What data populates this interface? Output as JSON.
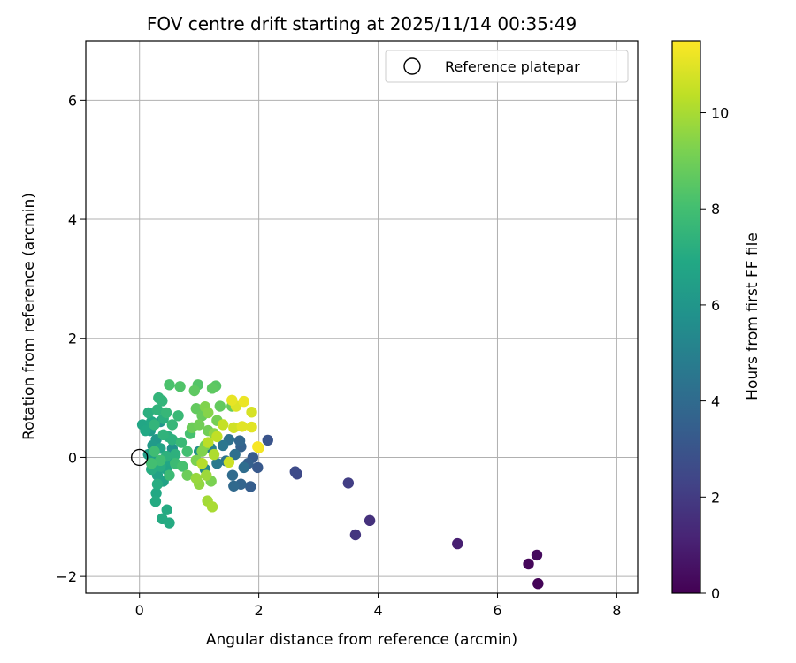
{
  "chart_data": {
    "type": "scatter",
    "title": "FOV centre drift starting at 2025/11/14 00:35:49",
    "xlabel": "Angular distance from reference (arcmin)",
    "ylabel": "Rotation from reference (arcmin)",
    "xlim": [
      -0.9,
      8.35
    ],
    "ylim": [
      -2.28,
      7.0
    ],
    "xticks": [
      0,
      2,
      4,
      6,
      8
    ],
    "yticks": [
      -2,
      0,
      2,
      4,
      6
    ],
    "grid": true,
    "legend": {
      "position": "top-right",
      "entries": [
        {
          "label": "Reference platepar",
          "marker": "open-circle"
        }
      ]
    },
    "reference_point": {
      "x": 0,
      "y": 0
    },
    "colorbar": {
      "label": "Hours from first FF file",
      "range": [
        0,
        11.5
      ],
      "ticks": [
        0,
        2,
        4,
        6,
        8,
        10
      ],
      "colormap": "viridis"
    },
    "points": [
      {
        "x": 6.68,
        "y": -2.12,
        "c": 0.1
      },
      {
        "x": 6.52,
        "y": -1.79,
        "c": 0.2
      },
      {
        "x": 6.66,
        "y": -1.64,
        "c": 0.3
      },
      {
        "x": 5.33,
        "y": -1.45,
        "c": 1.0
      },
      {
        "x": 3.86,
        "y": -1.06,
        "c": 1.6
      },
      {
        "x": 3.62,
        "y": -1.3,
        "c": 1.8
      },
      {
        "x": 3.5,
        "y": -0.43,
        "c": 2.1
      },
      {
        "x": 2.64,
        "y": -0.28,
        "c": 2.5
      },
      {
        "x": 2.61,
        "y": -0.24,
        "c": 2.6
      },
      {
        "x": 2.15,
        "y": 0.29,
        "c": 3.0
      },
      {
        "x": 1.98,
        "y": -0.17,
        "c": 3.2
      },
      {
        "x": 1.9,
        "y": 0.0,
        "c": 3.3
      },
      {
        "x": 1.86,
        "y": -0.49,
        "c": 3.4
      },
      {
        "x": 1.82,
        "y": -0.1,
        "c": 3.5
      },
      {
        "x": 1.7,
        "y": 0.18,
        "c": 3.6
      },
      {
        "x": 1.7,
        "y": -0.45,
        "c": 3.7
      },
      {
        "x": 1.68,
        "y": 0.28,
        "c": 3.8
      },
      {
        "x": 1.58,
        "y": -0.48,
        "c": 3.9
      },
      {
        "x": 1.56,
        "y": -0.3,
        "c": 4.0
      },
      {
        "x": 1.75,
        "y": -0.17,
        "c": 4.1
      },
      {
        "x": 1.6,
        "y": 0.05,
        "c": 4.2
      },
      {
        "x": 1.5,
        "y": 0.3,
        "c": 4.3
      },
      {
        "x": 1.45,
        "y": -0.06,
        "c": 4.4
      },
      {
        "x": 1.4,
        "y": 0.2,
        "c": 4.5
      },
      {
        "x": 1.3,
        "y": -0.1,
        "c": 4.7
      },
      {
        "x": 1.2,
        "y": 0.15,
        "c": 5.0
      },
      {
        "x": 1.1,
        "y": -0.2,
        "c": 5.3
      },
      {
        "x": 1.0,
        "y": 0.1,
        "c": 5.6
      },
      {
        "x": 0.55,
        "y": 0.15,
        "c": 5.8
      },
      {
        "x": 0.35,
        "y": 0.6,
        "c": 6.0
      },
      {
        "x": 0.28,
        "y": 0.3,
        "c": 6.1
      },
      {
        "x": 0.22,
        "y": 0.2,
        "c": 6.2
      },
      {
        "x": 0.18,
        "y": 0.45,
        "c": 6.3
      },
      {
        "x": 0.15,
        "y": 0.05,
        "c": 6.4
      },
      {
        "x": 0.25,
        "y": -0.05,
        "c": 6.5
      },
      {
        "x": 0.3,
        "y": -0.3,
        "c": 6.6
      },
      {
        "x": 0.4,
        "y": -0.4,
        "c": 6.6
      },
      {
        "x": 0.45,
        "y": -0.2,
        "c": 6.7
      },
      {
        "x": 0.35,
        "y": 0.15,
        "c": 6.7
      },
      {
        "x": 0.5,
        "y": -0.05,
        "c": 6.8
      },
      {
        "x": 0.05,
        "y": 0.55,
        "c": 6.8
      },
      {
        "x": 0.1,
        "y": 0.45,
        "c": 6.9
      },
      {
        "x": 0.2,
        "y": 0.6,
        "c": 6.9
      },
      {
        "x": 0.28,
        "y": -0.6,
        "c": 6.9
      },
      {
        "x": 0.27,
        "y": -0.74,
        "c": 7.0
      },
      {
        "x": 0.38,
        "y": -1.03,
        "c": 7.0
      },
      {
        "x": 0.46,
        "y": -0.88,
        "c": 7.0
      },
      {
        "x": 0.5,
        "y": -1.1,
        "c": 7.0
      },
      {
        "x": 0.35,
        "y": -0.15,
        "c": 7.1
      },
      {
        "x": 0.3,
        "y": -0.45,
        "c": 7.1
      },
      {
        "x": 0.2,
        "y": -0.2,
        "c": 7.1
      },
      {
        "x": 0.15,
        "y": 0.75,
        "c": 7.2
      },
      {
        "x": 0.4,
        "y": 0.65,
        "c": 7.2
      },
      {
        "x": 0.48,
        "y": 0.35,
        "c": 7.2
      },
      {
        "x": 0.55,
        "y": 0.3,
        "c": 7.3
      },
      {
        "x": 0.6,
        "y": 0.05,
        "c": 7.3
      },
      {
        "x": 0.45,
        "y": 0.02,
        "c": 7.3
      },
      {
        "x": 0.4,
        "y": 0.38,
        "c": 7.4
      },
      {
        "x": 0.3,
        "y": 0.8,
        "c": 7.4
      },
      {
        "x": 0.25,
        "y": 0.55,
        "c": 7.5
      },
      {
        "x": 0.32,
        "y": 1.0,
        "c": 7.5
      },
      {
        "x": 0.38,
        "y": 0.95,
        "c": 7.5
      },
      {
        "x": 0.45,
        "y": 0.75,
        "c": 7.6
      },
      {
        "x": 0.55,
        "y": 0.55,
        "c": 7.6
      },
      {
        "x": 0.65,
        "y": 0.7,
        "c": 7.7
      },
      {
        "x": 0.7,
        "y": 0.25,
        "c": 7.7
      },
      {
        "x": 0.6,
        "y": -0.1,
        "c": 7.8
      },
      {
        "x": 0.5,
        "y": -0.3,
        "c": 7.8
      },
      {
        "x": 0.35,
        "y": -0.05,
        "c": 7.9
      },
      {
        "x": 0.25,
        "y": 0.1,
        "c": 7.9
      },
      {
        "x": 0.2,
        "y": -0.1,
        "c": 8.0
      },
      {
        "x": 0.8,
        "y": 0.1,
        "c": 8.0
      },
      {
        "x": 0.85,
        "y": 0.4,
        "c": 8.1
      },
      {
        "x": 0.72,
        "y": -0.15,
        "c": 8.1
      },
      {
        "x": 0.5,
        "y": 1.22,
        "c": 8.2
      },
      {
        "x": 0.68,
        "y": 1.19,
        "c": 8.3
      },
      {
        "x": 0.98,
        "y": 1.22,
        "c": 8.4
      },
      {
        "x": 1.28,
        "y": 1.2,
        "c": 8.5
      },
      {
        "x": 1.22,
        "y": 1.16,
        "c": 8.6
      },
      {
        "x": 0.92,
        "y": 1.12,
        "c": 8.6
      },
      {
        "x": 0.95,
        "y": 0.82,
        "c": 8.7
      },
      {
        "x": 1.35,
        "y": 0.86,
        "c": 8.7
      },
      {
        "x": 1.55,
        "y": 0.86,
        "c": 8.8
      },
      {
        "x": 1.05,
        "y": 0.7,
        "c": 8.8
      },
      {
        "x": 0.88,
        "y": 0.5,
        "c": 8.9
      },
      {
        "x": 0.8,
        "y": -0.3,
        "c": 8.9
      },
      {
        "x": 1.0,
        "y": 0.55,
        "c": 9.0
      },
      {
        "x": 1.15,
        "y": 0.45,
        "c": 9.0
      },
      {
        "x": 1.3,
        "y": 0.62,
        "c": 9.1
      },
      {
        "x": 1.1,
        "y": 0.2,
        "c": 9.1
      },
      {
        "x": 1.2,
        "y": -0.4,
        "c": 9.2
      },
      {
        "x": 0.95,
        "y": -0.05,
        "c": 9.2
      },
      {
        "x": 1.05,
        "y": 0.1,
        "c": 9.3
      },
      {
        "x": 1.1,
        "y": 0.85,
        "c": 9.3
      },
      {
        "x": 1.15,
        "y": 0.75,
        "c": 9.4
      },
      {
        "x": 1.25,
        "y": 0.4,
        "c": 9.5
      },
      {
        "x": 1.0,
        "y": -0.45,
        "c": 9.6
      },
      {
        "x": 0.95,
        "y": -0.35,
        "c": 9.7
      },
      {
        "x": 1.12,
        "y": -0.3,
        "c": 9.8
      },
      {
        "x": 1.14,
        "y": -0.73,
        "c": 9.9
      },
      {
        "x": 1.22,
        "y": -0.83,
        "c": 10.0
      },
      {
        "x": 1.25,
        "y": 0.05,
        "c": 10.1
      },
      {
        "x": 1.05,
        "y": -0.1,
        "c": 10.2
      },
      {
        "x": 1.15,
        "y": 0.25,
        "c": 10.3
      },
      {
        "x": 1.3,
        "y": 0.35,
        "c": 10.4
      },
      {
        "x": 1.4,
        "y": 0.55,
        "c": 10.5
      },
      {
        "x": 1.5,
        "y": -0.08,
        "c": 10.6
      },
      {
        "x": 1.58,
        "y": 0.5,
        "c": 10.7
      },
      {
        "x": 1.88,
        "y": 0.76,
        "c": 10.8
      },
      {
        "x": 1.62,
        "y": 0.86,
        "c": 10.9
      },
      {
        "x": 1.88,
        "y": 0.51,
        "c": 11.0
      },
      {
        "x": 1.72,
        "y": 0.52,
        "c": 11.0
      },
      {
        "x": 1.55,
        "y": 0.96,
        "c": 11.1
      },
      {
        "x": 1.75,
        "y": 0.94,
        "c": 11.2
      },
      {
        "x": 2.0,
        "y": 0.16,
        "c": 11.3
      },
      {
        "x": 1.98,
        "y": 0.18,
        "c": 11.4
      }
    ]
  }
}
